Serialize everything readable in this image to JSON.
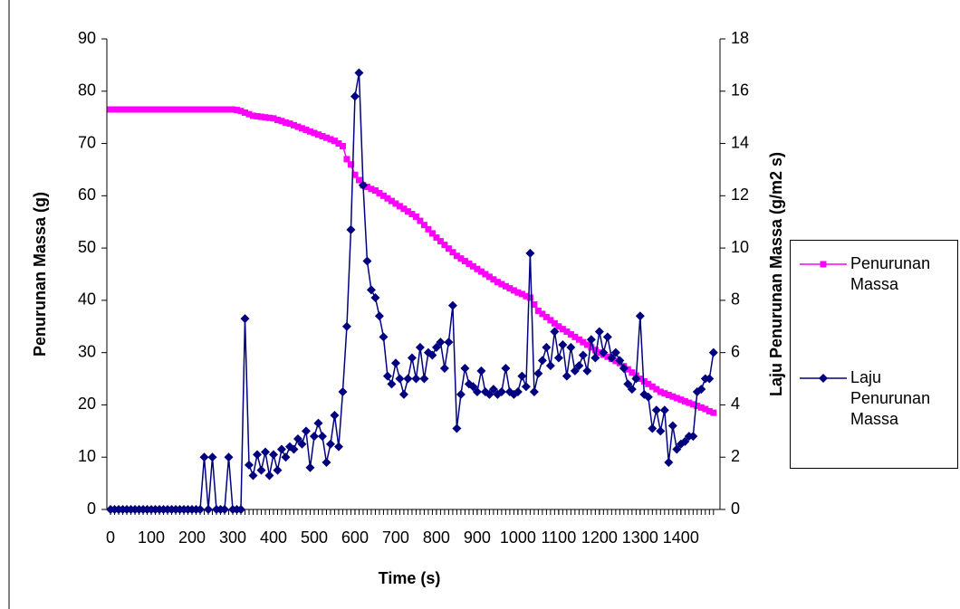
{
  "chart_data": {
    "type": "line",
    "xlabel": "Time (s)",
    "ylabel": "Penurunan Massa (g)",
    "y2label": "Laju Penurunan Massa (g/m2 s)",
    "x": [
      0,
      10,
      20,
      30,
      40,
      50,
      60,
      70,
      80,
      90,
      100,
      110,
      120,
      130,
      140,
      150,
      160,
      170,
      180,
      190,
      200,
      210,
      220,
      230,
      240,
      250,
      260,
      270,
      280,
      290,
      300,
      310,
      320,
      330,
      340,
      350,
      360,
      370,
      380,
      390,
      400,
      410,
      420,
      430,
      440,
      450,
      460,
      470,
      480,
      490,
      500,
      510,
      520,
      530,
      540,
      550,
      560,
      570,
      580,
      590,
      600,
      610,
      620,
      630,
      640,
      650,
      660,
      670,
      680,
      690,
      700,
      710,
      720,
      730,
      740,
      750,
      760,
      770,
      780,
      790,
      800,
      810,
      820,
      830,
      840,
      850,
      860,
      870,
      880,
      890,
      900,
      910,
      920,
      930,
      940,
      950,
      960,
      970,
      980,
      990,
      1000,
      1010,
      1020,
      1030,
      1040,
      1050,
      1060,
      1070,
      1080,
      1090,
      1100,
      1110,
      1120,
      1130,
      1140,
      1150,
      1160,
      1170,
      1180,
      1190,
      1200,
      1210,
      1220,
      1230,
      1240,
      1250,
      1260,
      1270,
      1280,
      1290,
      1300,
      1310,
      1320,
      1330,
      1340,
      1350,
      1360,
      1370,
      1380,
      1390,
      1400,
      1410,
      1420,
      1430,
      1440,
      1450,
      1460,
      1470,
      1480
    ],
    "series": [
      {
        "name": "Penurunan Massa",
        "color": "#ff00ff",
        "marker": "square",
        "values": [
          76.5,
          76.5,
          76.5,
          76.5,
          76.5,
          76.5,
          76.5,
          76.5,
          76.5,
          76.5,
          76.5,
          76.5,
          76.5,
          76.5,
          76.5,
          76.5,
          76.5,
          76.5,
          76.5,
          76.5,
          76.5,
          76.5,
          76.5,
          76.5,
          76.5,
          76.5,
          76.5,
          76.5,
          76.5,
          76.5,
          76.5,
          76.4,
          76.2,
          75.9,
          75.6,
          75.3,
          75.2,
          75.1,
          75.0,
          74.9,
          74.8,
          74.5,
          74.3,
          74.0,
          73.8,
          73.5,
          73.2,
          72.9,
          72.6,
          72.3,
          72.0,
          71.7,
          71.4,
          71.1,
          70.8,
          70.5,
          70.0,
          69.5,
          67.0,
          66.0,
          64.0,
          63.0,
          62.0,
          61.7,
          61.3,
          61.0,
          60.5,
          60.0,
          59.5,
          59.0,
          58.5,
          58.0,
          57.5,
          57.0,
          56.5,
          56.0,
          55.2,
          54.4,
          53.6,
          52.8,
          52.0,
          51.3,
          50.6,
          49.9,
          49.2,
          48.5,
          48.0,
          47.5,
          47.0,
          46.5,
          46.0,
          45.5,
          45.0,
          44.5,
          44.0,
          43.5,
          43.1,
          42.7,
          42.3,
          41.9,
          41.5,
          41.2,
          40.8,
          40.5,
          39.2,
          38.0,
          37.4,
          36.8,
          36.2,
          35.6,
          35.0,
          34.5,
          34.0,
          33.5,
          33.0,
          32.5,
          32.0,
          31.5,
          31.0,
          30.5,
          30.0,
          29.6,
          29.2,
          28.8,
          28.4,
          28.0,
          27.4,
          26.8,
          26.2,
          25.6,
          25.0,
          24.5,
          24.0,
          23.5,
          23.0,
          22.5,
          22.2,
          21.9,
          21.6,
          21.3,
          21.0,
          20.7,
          20.4,
          20.1,
          19.8,
          19.5,
          19.2,
          18.8,
          18.5
        ]
      },
      {
        "name": "Laju Penurunan Massa",
        "color": "#000080",
        "marker": "diamond",
        "axis": "y2",
        "values": [
          0,
          0,
          0,
          0,
          0,
          0,
          0,
          0,
          0,
          0,
          0,
          0,
          0,
          0,
          0,
          0,
          0,
          0,
          0,
          0,
          0,
          0,
          0,
          2.0,
          0,
          2.0,
          0,
          0,
          0,
          2.0,
          0,
          0,
          0,
          7.3,
          1.7,
          1.3,
          2.1,
          1.5,
          2.2,
          1.3,
          2.1,
          1.5,
          2.3,
          2.0,
          2.4,
          2.3,
          2.7,
          2.5,
          3.0,
          1.6,
          2.8,
          3.3,
          2.8,
          1.8,
          2.5,
          3.6,
          2.4,
          4.5,
          7.0,
          10.7,
          15.8,
          16.7,
          12.4,
          9.5,
          8.4,
          8.1,
          7.4,
          6.6,
          5.1,
          4.8,
          5.6,
          5.0,
          4.4,
          5.0,
          5.8,
          5.0,
          6.2,
          5.0,
          6.0,
          5.9,
          6.2,
          6.4,
          5.4,
          6.4,
          7.8,
          3.1,
          4.4,
          5.4,
          4.8,
          4.7,
          4.5,
          5.3,
          4.5,
          4.4,
          4.6,
          4.4,
          4.5,
          5.4,
          4.5,
          4.4,
          4.5,
          5.1,
          4.7,
          9.8,
          4.5,
          5.2,
          5.7,
          6.2,
          5.5,
          6.8,
          5.8,
          6.3,
          5.1,
          6.2,
          5.3,
          5.5,
          5.9,
          5.3,
          6.5,
          5.8,
          6.8,
          6.0,
          6.6,
          5.8,
          6.0,
          5.7,
          5.4,
          4.8,
          4.6,
          5.0,
          7.4,
          4.4,
          4.3,
          3.1,
          3.8,
          3.0,
          3.8,
          1.8,
          3.2,
          2.3,
          2.5,
          2.6,
          2.8,
          2.8,
          4.5,
          4.6,
          5.0,
          5.0,
          6.0
        ]
      }
    ],
    "xlim": [
      -9,
      1496
    ],
    "xticks": [
      0,
      100,
      200,
      300,
      400,
      500,
      600,
      700,
      800,
      900,
      1000,
      1100,
      1200,
      1300,
      1400
    ],
    "ylim": [
      0,
      90
    ],
    "yticks": [
      0,
      10,
      20,
      30,
      40,
      50,
      60,
      70,
      80,
      90
    ],
    "y2lim": [
      0,
      18
    ],
    "y2ticks": [
      0,
      2,
      4,
      6,
      8,
      10,
      12,
      14,
      16,
      18
    ],
    "grid": false,
    "legend": "right"
  }
}
